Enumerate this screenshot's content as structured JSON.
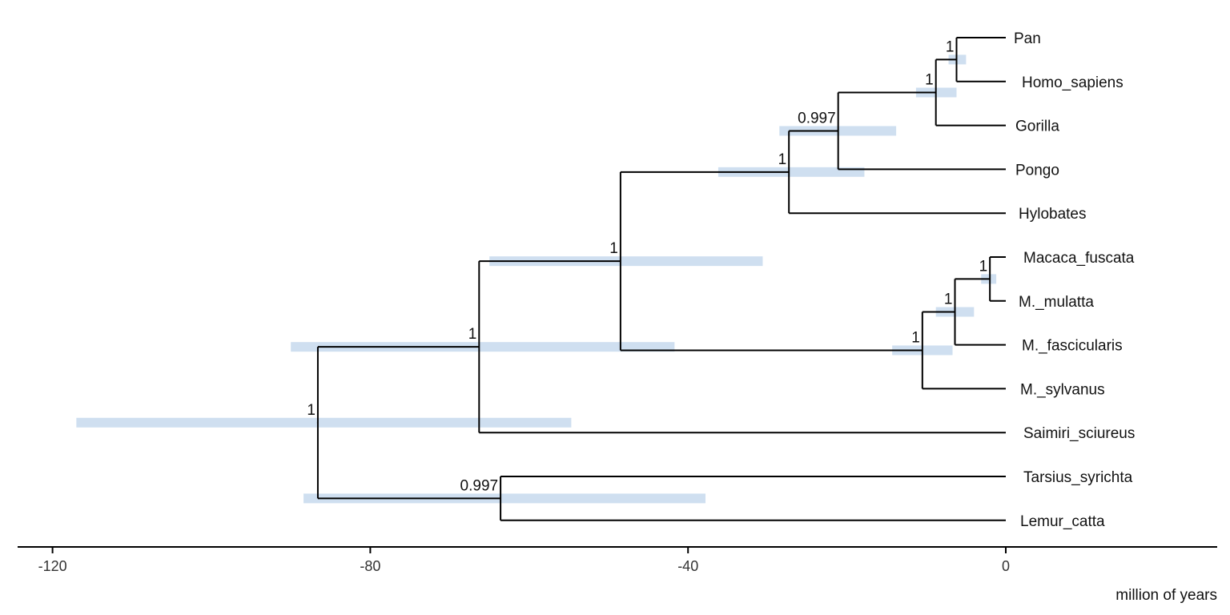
{
  "chart_data": {
    "type": "phylogenetic-tree",
    "x_axis": {
      "label": "million of years",
      "ticks": [
        -120,
        -80,
        -40,
        0
      ],
      "range": [
        -124,
        27
      ]
    },
    "colors": {
      "branch": "#000000",
      "hpd_bar": "#cfdff0"
    },
    "tips": [
      {
        "id": "pan",
        "label": "Pan"
      },
      {
        "id": "homo",
        "label": "Homo_sapiens"
      },
      {
        "id": "gorilla",
        "label": "Gorilla"
      },
      {
        "id": "pongo",
        "label": "Pongo"
      },
      {
        "id": "hylobates",
        "label": "Hylobates"
      },
      {
        "id": "mfuscata",
        "label": "Macaca_fuscata"
      },
      {
        "id": "mmulatta",
        "label": "M._mulatta"
      },
      {
        "id": "mfasc",
        "label": "M._fascicularis"
      },
      {
        "id": "msylv",
        "label": "M._sylvanus"
      },
      {
        "id": "saimiri",
        "label": "Saimiri_sciureus"
      },
      {
        "id": "tarsius",
        "label": "Tarsius_syrichta"
      },
      {
        "id": "lemur",
        "label": "Lemur_catta"
      }
    ],
    "nodes": [
      {
        "id": "n_pan_homo",
        "age": -6.2,
        "support": "1",
        "hpd": [
          -7.2,
          -5.0
        ],
        "children": [
          "pan",
          "homo"
        ]
      },
      {
        "id": "n_hominini",
        "age": -8.8,
        "support": "1",
        "hpd": [
          -11.3,
          -6.2
        ],
        "children": [
          "n_pan_homo",
          "gorilla"
        ]
      },
      {
        "id": "n_hominidae",
        "age": -21.1,
        "support": "0.997",
        "hpd": [
          -28.5,
          -13.8
        ],
        "children": [
          "n_hominini",
          "pongo"
        ]
      },
      {
        "id": "n_hominoidea",
        "age": -27.3,
        "support": "1",
        "hpd": [
          -36.2,
          -17.8
        ],
        "children": [
          "n_hominidae",
          "hylobates"
        ]
      },
      {
        "id": "n_mac_fus_mul",
        "age": -2.0,
        "support": "1",
        "hpd": [
          -3.1,
          -1.2
        ],
        "children": [
          "mfuscata",
          "mmulatta"
        ]
      },
      {
        "id": "n_mac_fasc",
        "age": -6.4,
        "support": "1",
        "hpd": [
          -8.8,
          -4.0
        ],
        "children": [
          "n_mac_fus_mul",
          "mfasc"
        ]
      },
      {
        "id": "n_macaca",
        "age": -10.5,
        "support": "1",
        "hpd": [
          -14.3,
          -6.7
        ],
        "children": [
          "n_mac_fasc",
          "msylv"
        ]
      },
      {
        "id": "n_catarrhini",
        "age": -48.5,
        "support": "1",
        "hpd": [
          -65.0,
          -30.6
        ],
        "children": [
          "n_hominoidea",
          "n_macaca"
        ]
      },
      {
        "id": "n_anthropoidea",
        "age": -66.3,
        "support": "1",
        "hpd": [
          -90.0,
          -41.7
        ],
        "children": [
          "n_catarrhini",
          "saimiri"
        ]
      },
      {
        "id": "n_strep_tars",
        "age": -63.6,
        "support": "0.997",
        "hpd": [
          -88.4,
          -37.8
        ],
        "children": [
          "tarsius",
          "lemur"
        ]
      },
      {
        "id": "n_root",
        "age": -86.6,
        "support": "1",
        "hpd": [
          -117.0,
          -54.7
        ],
        "children": [
          "n_anthropoidea",
          "n_strep_tars"
        ]
      }
    ]
  }
}
